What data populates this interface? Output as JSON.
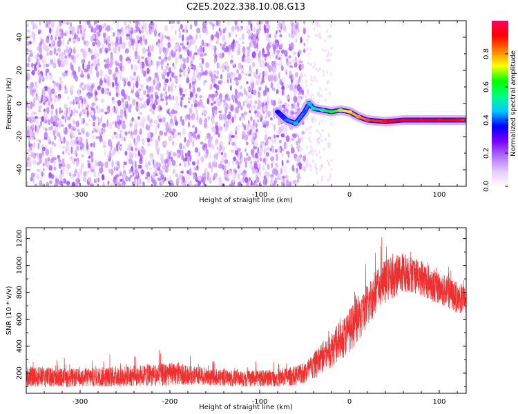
{
  "title": "C2E5.2022.338.10.08.G13",
  "chart_data": [
    {
      "type": "heatmap",
      "xlabel": "Height of straight line (km)",
      "ylabel": "Frequency (Hz)",
      "xlim": [
        -360,
        130
      ],
      "ylim": [
        -50,
        50
      ],
      "xticks": [
        -300,
        -200,
        -100,
        0,
        100
      ],
      "yticks": [
        -40,
        -20,
        0,
        20,
        40
      ],
      "colorbar": {
        "label": "Normalized spectral amplitude",
        "range": [
          0,
          1
        ],
        "ticks": [
          0.0,
          0.2,
          0.4,
          0.6,
          0.8
        ],
        "colormap": [
          "#ffffff",
          "#e6c8ff",
          "#b070ff",
          "#7a00ff",
          "#0000ff",
          "#00c8ff",
          "#00ff80",
          "#00ff00",
          "#ffff00",
          "#ff8000",
          "#ff0000",
          "#ff0060"
        ]
      },
      "noise_region": {
        "x_range": [
          -360,
          -50
        ],
        "freq_range": [
          -50,
          50
        ],
        "amplitude": 0.2
      },
      "signal_trace": [
        {
          "x": -80,
          "freq": -5,
          "amp": 0.35
        },
        {
          "x": -70,
          "freq": -10,
          "amp": 0.42
        },
        {
          "x": -60,
          "freq": -12,
          "amp": 0.45
        },
        {
          "x": -50,
          "freq": -5,
          "amp": 0.4
        },
        {
          "x": -45,
          "freq": 0,
          "amp": 0.45
        },
        {
          "x": -40,
          "freq": -3,
          "amp": 0.5
        },
        {
          "x": -30,
          "freq": -4,
          "amp": 0.55
        },
        {
          "x": -20,
          "freq": -5,
          "amp": 0.62
        },
        {
          "x": -10,
          "freq": -4,
          "amp": 0.7
        },
        {
          "x": 0,
          "freq": -5,
          "amp": 0.75
        },
        {
          "x": 10,
          "freq": -8,
          "amp": 0.8
        },
        {
          "x": 20,
          "freq": -10,
          "amp": 0.85
        },
        {
          "x": 40,
          "freq": -11,
          "amp": 0.9
        },
        {
          "x": 60,
          "freq": -10,
          "amp": 0.95
        },
        {
          "x": 80,
          "freq": -10,
          "amp": 0.95
        },
        {
          "x": 100,
          "freq": -10,
          "amp": 0.9
        },
        {
          "x": 120,
          "freq": -10,
          "amp": 0.9
        },
        {
          "x": 130,
          "freq": -10,
          "amp": 0.85
        }
      ]
    },
    {
      "type": "line",
      "xlabel": "Height of straight line (km)",
      "ylabel": "SNR (10 * v/v)",
      "xlim": [
        -360,
        130
      ],
      "ylim": [
        50,
        1280
      ],
      "xticks": [
        -300,
        -200,
        -100,
        0,
        100
      ],
      "yticks": [
        200,
        400,
        600,
        800,
        1000,
        1200
      ],
      "color": "#ef3030",
      "series": [
        {
          "x": [
            -360,
            -340,
            -320,
            -300,
            -280,
            -260,
            -240,
            -220,
            -200,
            -180,
            -160,
            -140,
            -120,
            -100,
            -80,
            -60,
            -50,
            -40,
            -30,
            -20,
            -10,
            0,
            10,
            20,
            30,
            40,
            50,
            60,
            70,
            80,
            90,
            100,
            110,
            120,
            130
          ],
          "values": [
            175,
            170,
            165,
            165,
            170,
            175,
            180,
            185,
            190,
            185,
            175,
            165,
            160,
            160,
            165,
            180,
            200,
            250,
            320,
            380,
            440,
            520,
            600,
            700,
            820,
            880,
            920,
            950,
            940,
            910,
            870,
            830,
            800,
            760,
            740
          ],
          "spread": [
            120,
            130,
            120,
            110,
            120,
            130,
            130,
            140,
            140,
            120,
            110,
            100,
            100,
            100,
            110,
            120,
            140,
            170,
            200,
            230,
            250,
            270,
            280,
            280,
            280,
            270,
            260,
            250,
            240,
            230,
            220,
            210,
            200,
            190,
            180
          ]
        }
      ]
    }
  ]
}
